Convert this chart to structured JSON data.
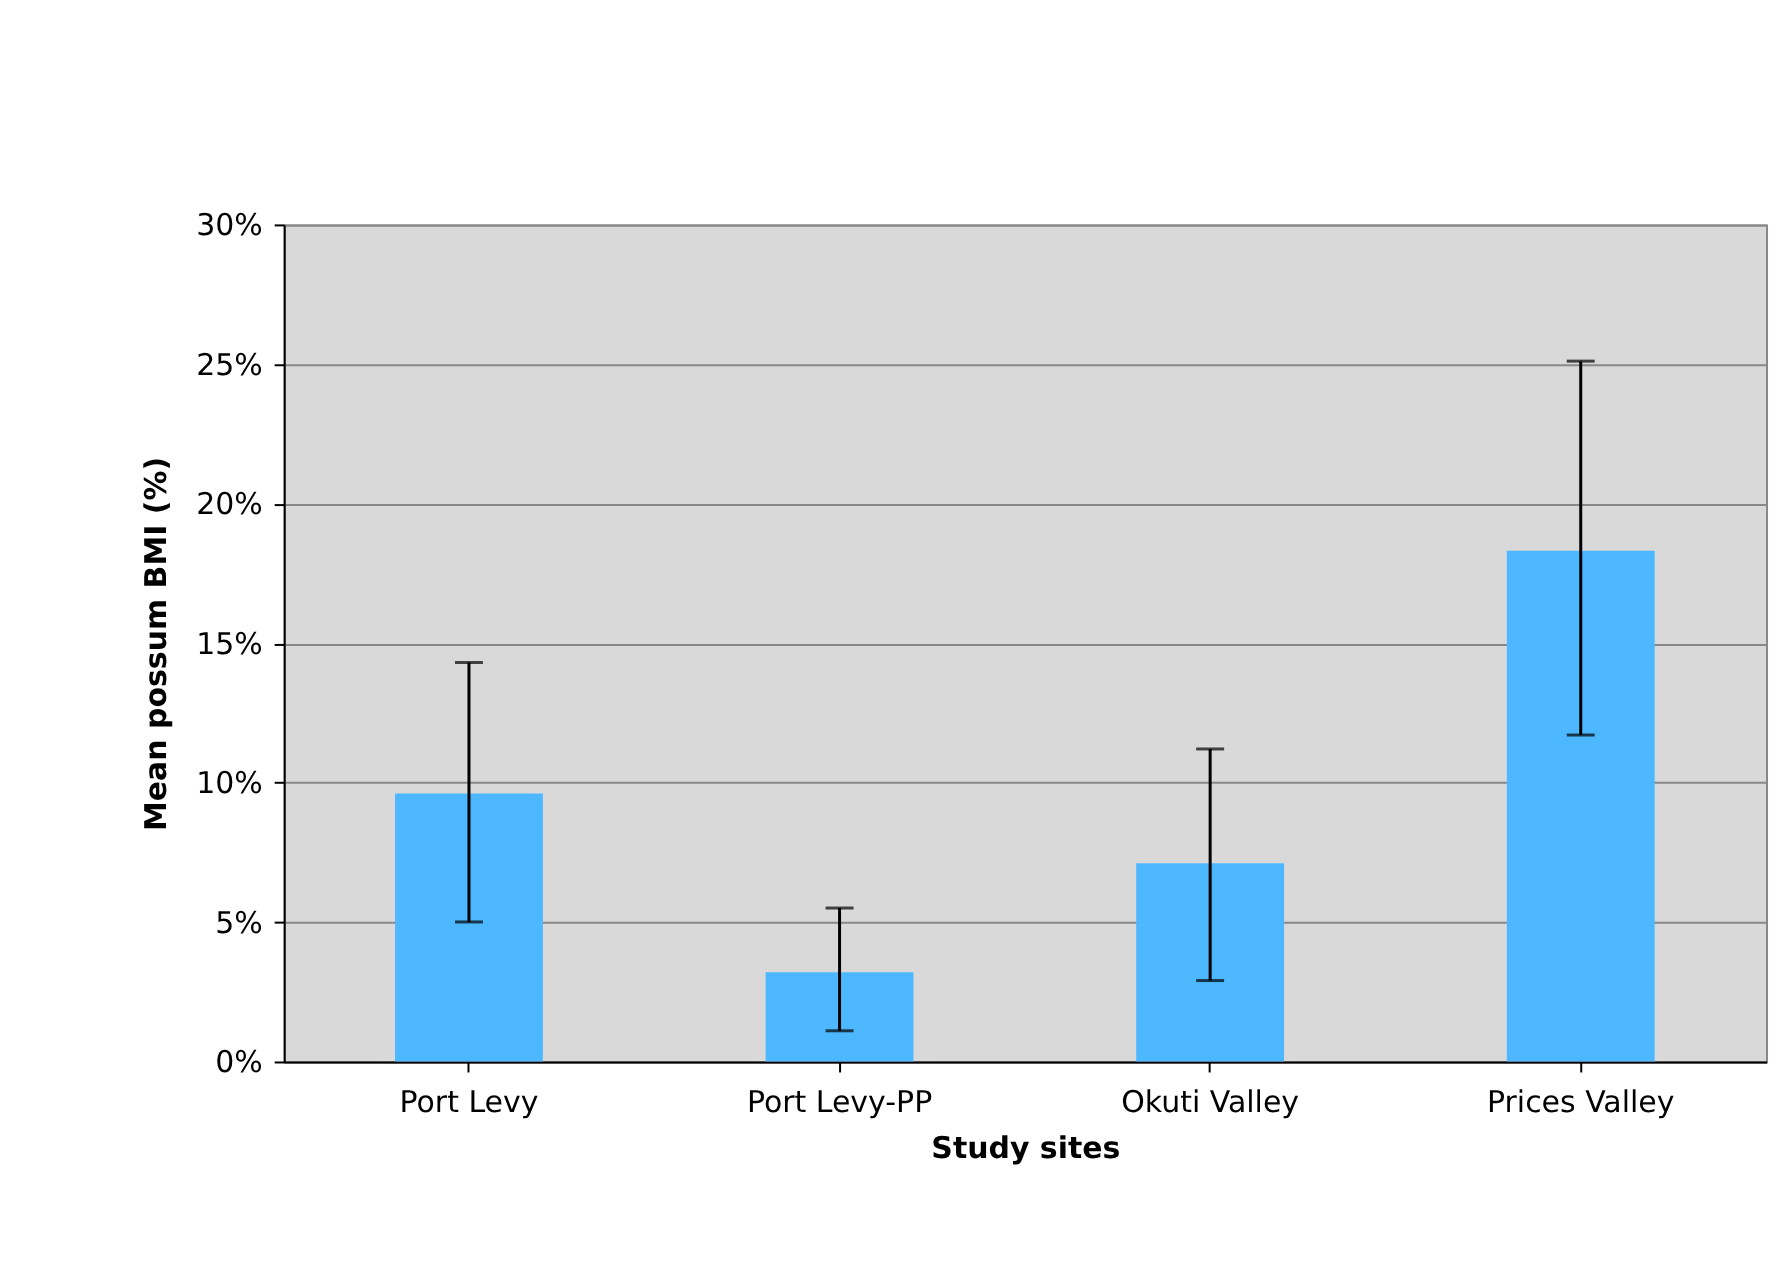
{
  "chart_data": {
    "type": "bar",
    "xlabel": "Study sites",
    "ylabel": "Mean possum BMI (%)",
    "categories": [
      "Port Levy",
      "Port Levy-PP",
      "Okuti Valley",
      "Prices Valley"
    ],
    "values": [
      9.6,
      3.2,
      7.1,
      18.3
    ],
    "color": "#4db8ff",
    "errors": [
      [
        5.0,
        14.3
      ],
      [
        1.1,
        5.5
      ],
      [
        2.9,
        11.2
      ],
      [
        11.7,
        25.1
      ]
    ],
    "ylim": [
      0,
      30
    ],
    "yticks": [
      {
        "value": 0,
        "label": "0%"
      },
      {
        "value": 5,
        "label": "5%"
      },
      {
        "value": 10,
        "label": "10%"
      },
      {
        "value": 15,
        "label": "15%"
      },
      {
        "value": 20,
        "label": "20%"
      },
      {
        "value": 25,
        "label": "25%"
      },
      {
        "value": 30,
        "label": "30%"
      }
    ],
    "grid": "y"
  }
}
